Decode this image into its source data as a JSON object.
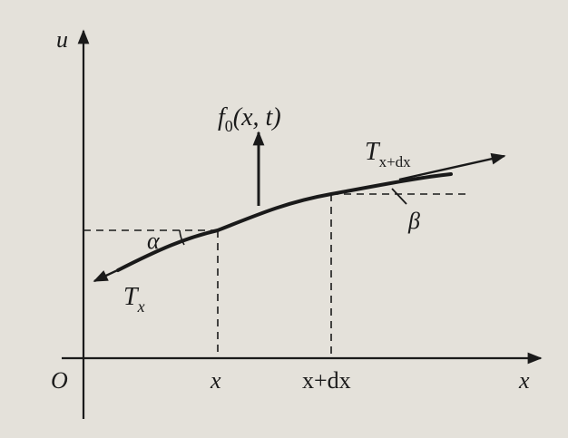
{
  "axes": {
    "vertical_label": "u",
    "horizontal_label": "x",
    "origin_label": "O"
  },
  "ticks": {
    "x_label": "x",
    "x_plus_dx_label": "x+dx"
  },
  "force": {
    "f_main": "f",
    "f_subscript": "0",
    "f_args": "(x, t)"
  },
  "tensions": {
    "left_main": "T",
    "left_subscript": "x",
    "right_main": "T",
    "right_subscript": "x+dx"
  },
  "angles": {
    "alpha": "α",
    "beta": "β"
  },
  "colors": {
    "background": "#e4e1da",
    "ink": "#1a1a1a"
  }
}
